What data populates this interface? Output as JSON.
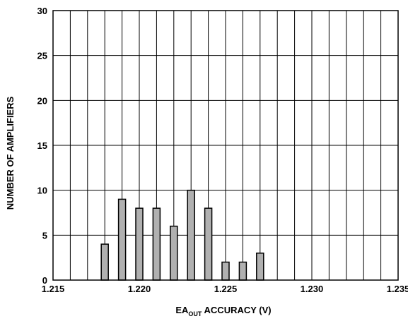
{
  "chart_data": {
    "type": "bar",
    "title": "",
    "xlabel": {
      "main": "EA",
      "sub": "OUT",
      "rest": " ACCURACY (V)"
    },
    "ylabel": "NUMBER OF AMPLIFIERS",
    "xlim": [
      1.215,
      1.235
    ],
    "ylim": [
      0,
      30
    ],
    "x_ticks": [
      "1.215",
      "1.220",
      "1.225",
      "1.230",
      "1.235"
    ],
    "y_ticks": [
      "0",
      "5",
      "10",
      "15",
      "20",
      "25",
      "30"
    ],
    "grid": true,
    "bar_color": "#b0b0b0",
    "x": [
      1.218,
      1.219,
      1.22,
      1.221,
      1.222,
      1.223,
      1.224,
      1.225,
      1.226,
      1.227
    ],
    "values": [
      4,
      9,
      8,
      8,
      6,
      10,
      8,
      2,
      2,
      3
    ]
  }
}
